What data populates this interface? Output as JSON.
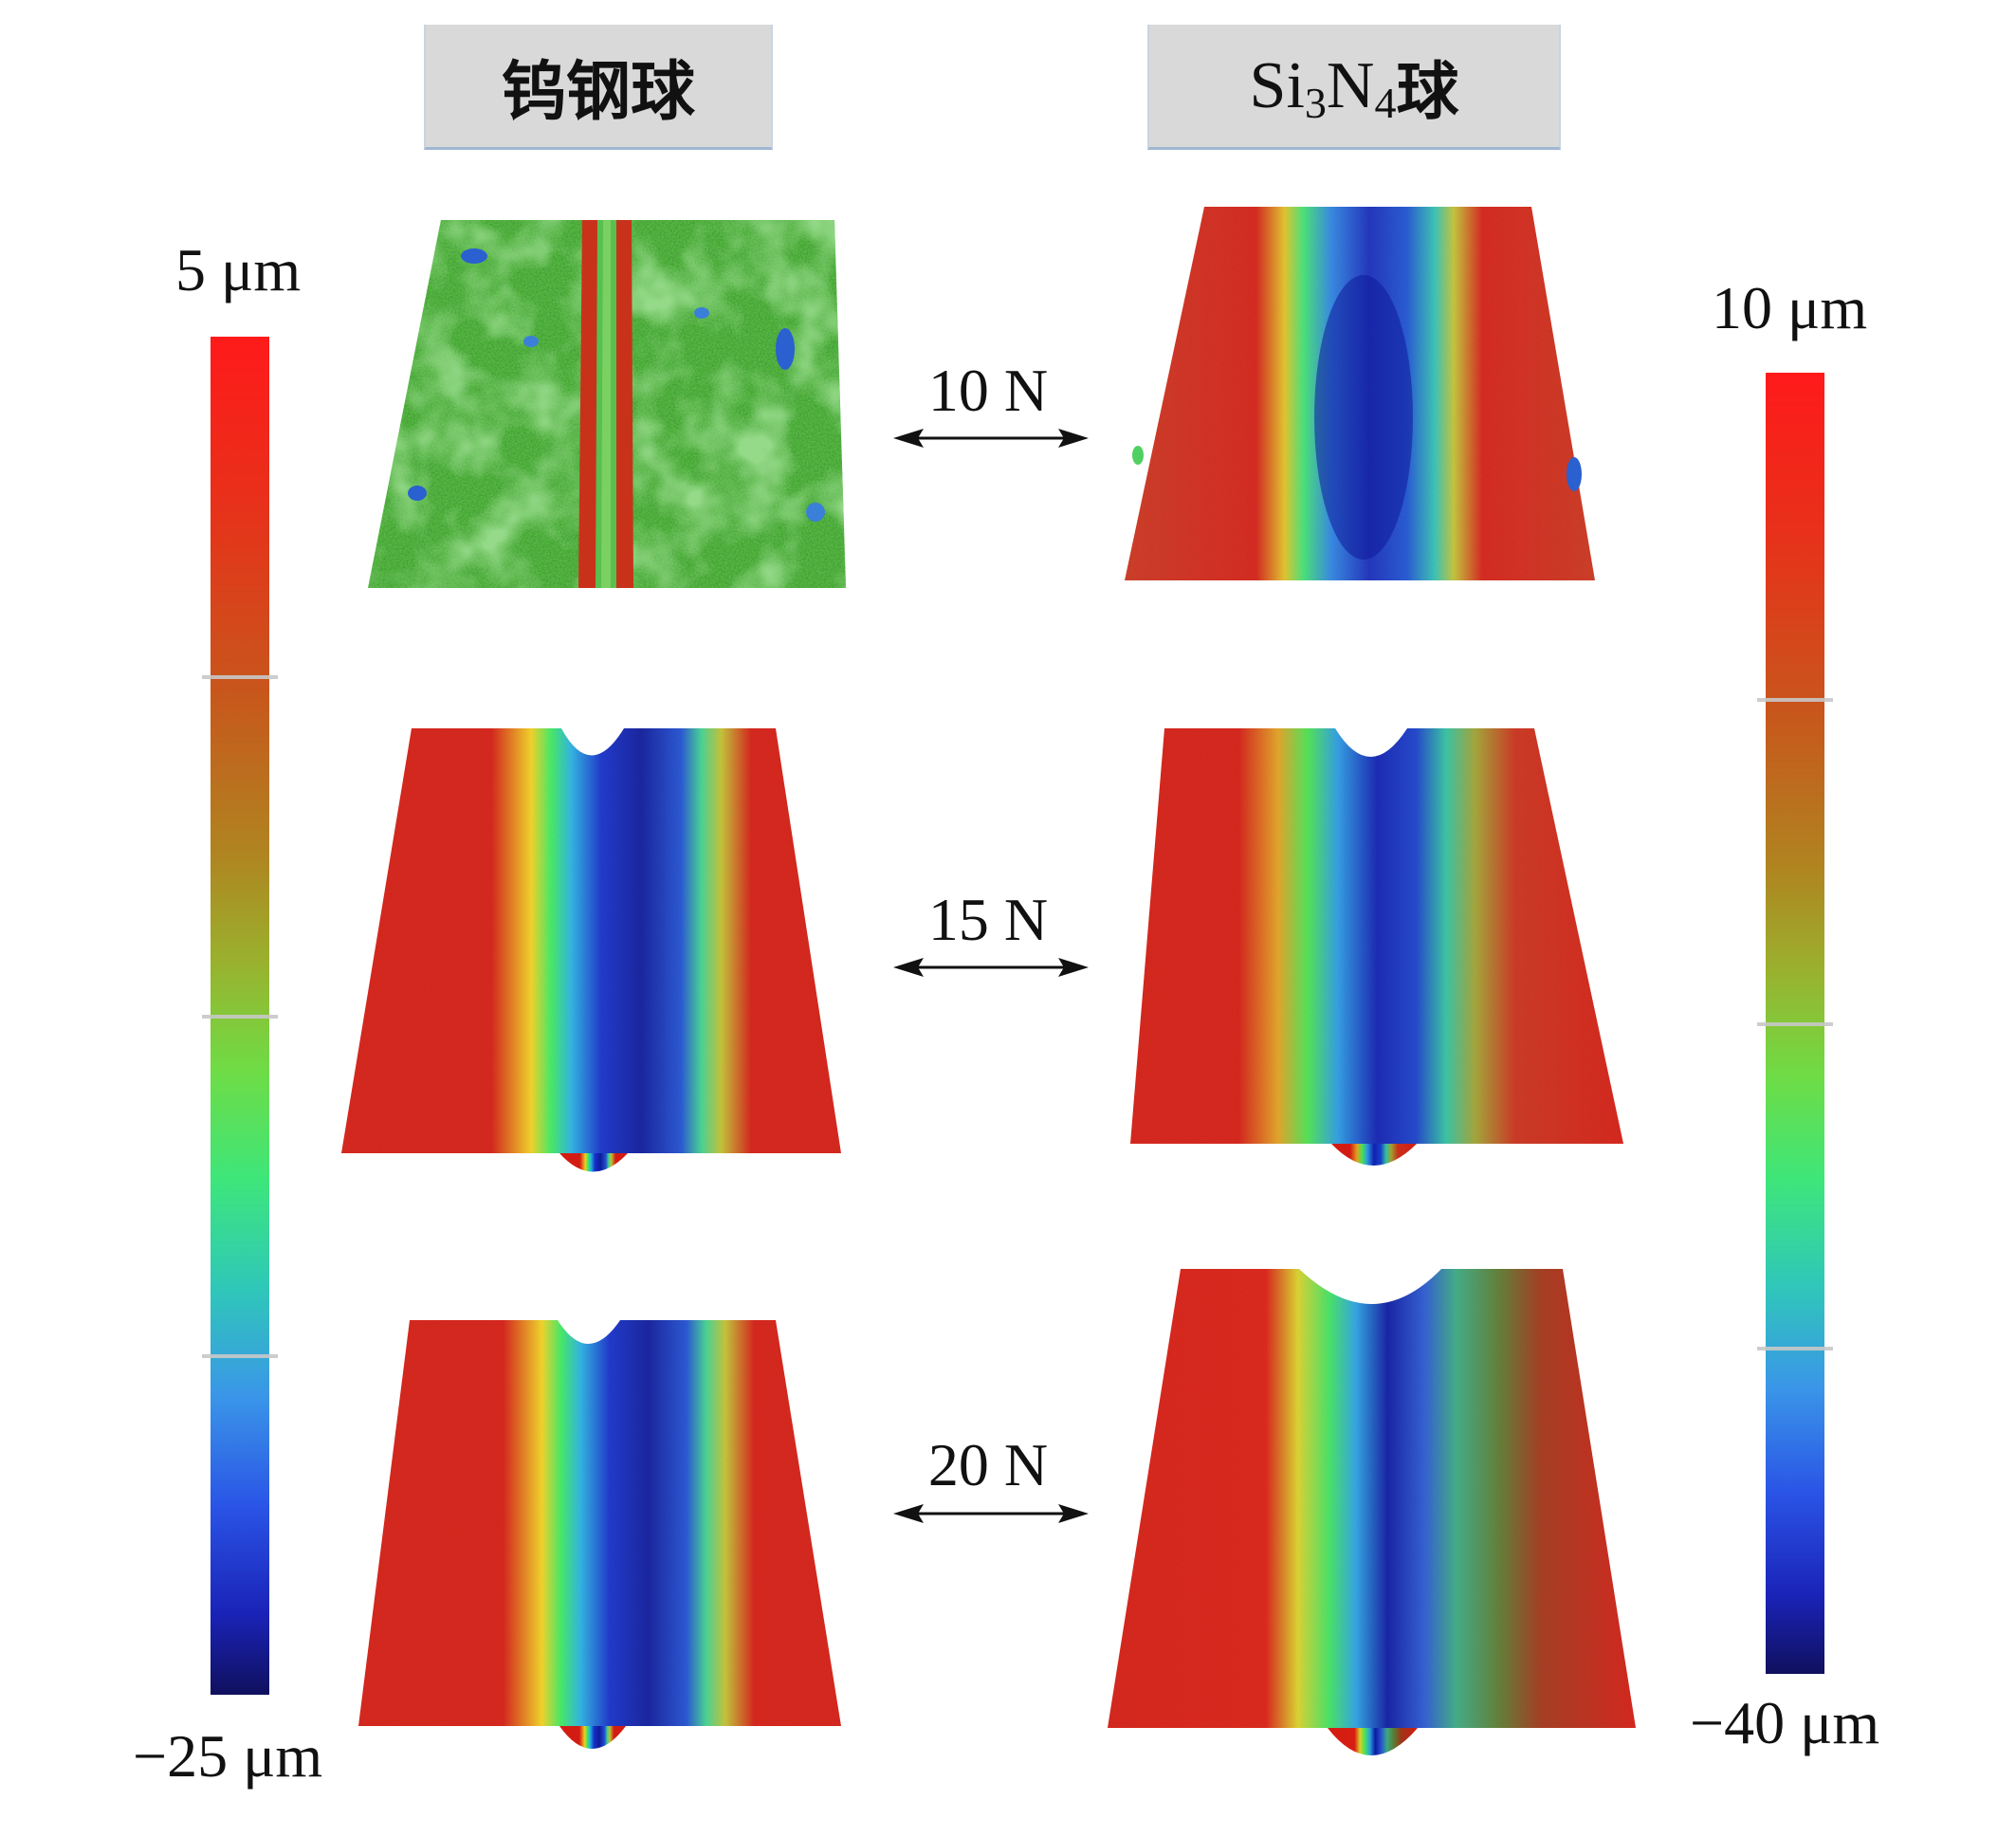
{
  "headers": {
    "left": "钨钢球",
    "right_prefix": "Si",
    "right_sub1": "3",
    "right_mid": "N",
    "right_sub2": "4",
    "right_suffix": "球"
  },
  "loads": [
    "10 N",
    "15 N",
    "20 N"
  ],
  "left_scale": {
    "max_label": "5 μm",
    "min_label": "−25 μm"
  },
  "right_scale": {
    "max_label": "10 μm",
    "min_label": "−40 μm"
  },
  "colormap": [
    "#10105e",
    "#2a55e6",
    "#3a96e8",
    "#2fc8b8",
    "#3ee67a",
    "#9ab12e",
    "#c8561c",
    "#ff1a1a"
  ]
}
